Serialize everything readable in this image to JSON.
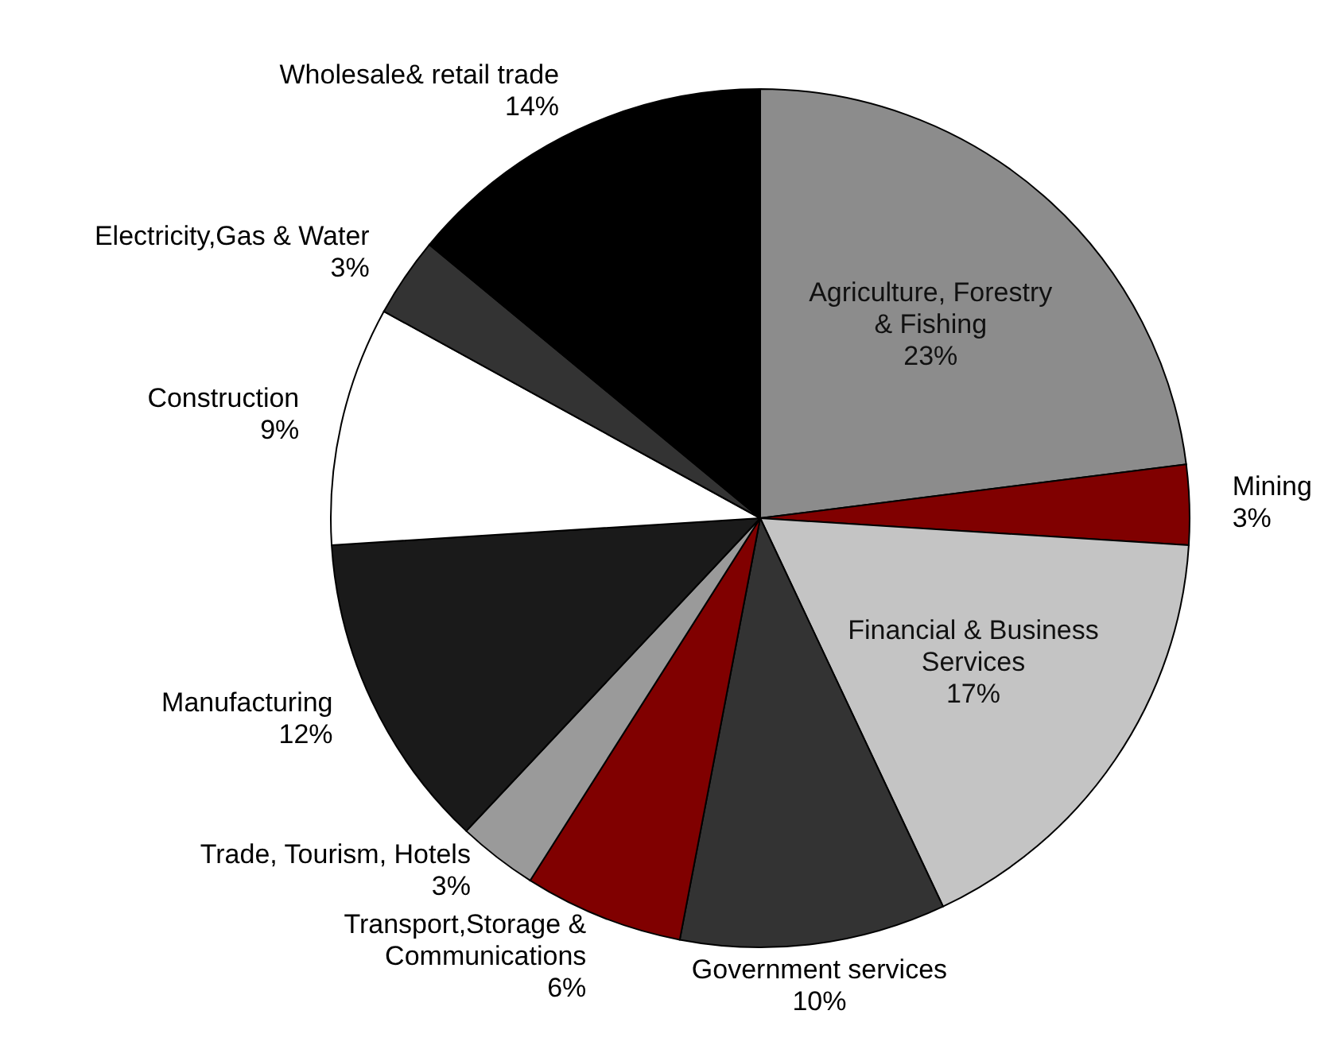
{
  "chart_data": {
    "type": "pie",
    "categories": [
      "Agriculture, Forestry & Fishing",
      "Mining",
      "Financial & Business Services",
      "Government services",
      "Transport,Storage & Communications",
      "Trade, Tourism, Hotels",
      "Manufacturing",
      "Construction",
      "Electricity,Gas & Water",
      "Wholesale& retail trade"
    ],
    "values": [
      23,
      3,
      17,
      10,
      6,
      3,
      12,
      9,
      3,
      14
    ],
    "colors": [
      "#8c8c8c",
      "#800000",
      "#c4c4c4",
      "#333333",
      "#800000",
      "#9a9a9a",
      "#1a1a1a",
      "#ffffff",
      "#333333",
      "#000000"
    ],
    "value_labels": [
      "23%",
      "3%",
      "17%",
      "10%",
      "6%",
      "3%",
      "12%",
      "9%",
      "3%",
      "14%"
    ]
  }
}
